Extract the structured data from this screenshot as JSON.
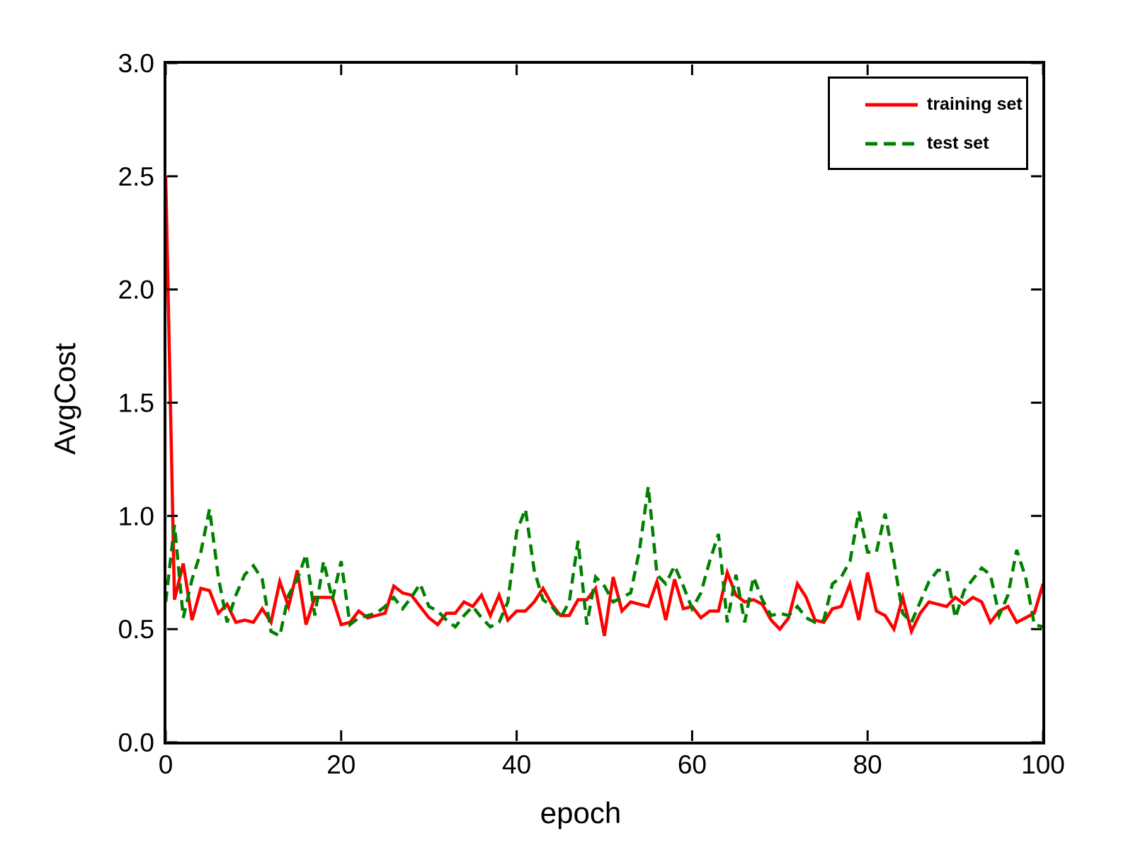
{
  "figure": {
    "background": "#ffffff",
    "axis_color": "#000000"
  },
  "chart_data": {
    "type": "line",
    "title": "",
    "xlabel": "epoch",
    "ylabel": "AvgCost",
    "xlim": [
      0,
      100
    ],
    "ylim": [
      0.0,
      3.0
    ],
    "xticks": [
      0,
      20,
      40,
      60,
      80,
      100
    ],
    "yticks": [
      0.0,
      0.5,
      1.0,
      1.5,
      2.0,
      2.5,
      3.0
    ],
    "ytick_labels": [
      "0.0",
      "0.5",
      "1.0",
      "1.5",
      "2.0",
      "2.5",
      "3.0"
    ],
    "grid": false,
    "legend_position": "upper right",
    "x": [
      0,
      1,
      2,
      3,
      4,
      5,
      6,
      7,
      8,
      9,
      10,
      11,
      12,
      13,
      14,
      15,
      16,
      17,
      18,
      19,
      20,
      21,
      22,
      23,
      24,
      25,
      26,
      27,
      28,
      29,
      30,
      31,
      32,
      33,
      34,
      35,
      36,
      37,
      38,
      39,
      40,
      41,
      42,
      43,
      44,
      45,
      46,
      47,
      48,
      49,
      50,
      51,
      52,
      53,
      54,
      55,
      56,
      57,
      58,
      59,
      60,
      61,
      62,
      63,
      64,
      65,
      66,
      67,
      68,
      69,
      70,
      71,
      72,
      73,
      74,
      75,
      76,
      77,
      78,
      79,
      80,
      81,
      82,
      83,
      84,
      85,
      86,
      87,
      88,
      89,
      90,
      91,
      92,
      93,
      94,
      95,
      96,
      97,
      98,
      99,
      100
    ],
    "series": [
      {
        "name": "training set",
        "color": "#ff0000",
        "style": "solid",
        "values": [
          2.5,
          0.63,
          0.79,
          0.54,
          0.68,
          0.67,
          0.57,
          0.61,
          0.53,
          0.54,
          0.53,
          0.59,
          0.53,
          0.71,
          0.6,
          0.76,
          0.52,
          0.64,
          0.64,
          0.64,
          0.52,
          0.53,
          0.58,
          0.55,
          0.56,
          0.57,
          0.69,
          0.66,
          0.65,
          0.6,
          0.55,
          0.52,
          0.57,
          0.57,
          0.62,
          0.6,
          0.65,
          0.56,
          0.65,
          0.54,
          0.58,
          0.58,
          0.62,
          0.68,
          0.61,
          0.56,
          0.56,
          0.63,
          0.63,
          0.68,
          0.47,
          0.73,
          0.58,
          0.62,
          0.61,
          0.6,
          0.71,
          0.54,
          0.72,
          0.59,
          0.6,
          0.55,
          0.58,
          0.58,
          0.75,
          0.65,
          0.62,
          0.63,
          0.61,
          0.54,
          0.5,
          0.55,
          0.7,
          0.64,
          0.54,
          0.53,
          0.59,
          0.6,
          0.7,
          0.54,
          0.75,
          0.58,
          0.56,
          0.5,
          0.64,
          0.49,
          0.57,
          0.62,
          0.61,
          0.6,
          0.64,
          0.61,
          0.64,
          0.62,
          0.53,
          0.58,
          0.6,
          0.53,
          0.55,
          0.57,
          0.7
        ]
      },
      {
        "name": "test set",
        "color": "#008000",
        "style": "dashed",
        "values": [
          0.62,
          0.96,
          0.55,
          0.72,
          0.84,
          1.03,
          0.73,
          0.53,
          0.65,
          0.74,
          0.78,
          0.72,
          0.49,
          0.47,
          0.65,
          0.72,
          0.83,
          0.56,
          0.8,
          0.63,
          0.8,
          0.52,
          0.55,
          0.56,
          0.57,
          0.6,
          0.64,
          0.59,
          0.64,
          0.7,
          0.6,
          0.58,
          0.54,
          0.51,
          0.56,
          0.6,
          0.55,
          0.51,
          0.53,
          0.62,
          0.93,
          1.03,
          0.76,
          0.63,
          0.6,
          0.55,
          0.62,
          0.89,
          0.52,
          0.73,
          0.69,
          0.62,
          0.64,
          0.66,
          0.85,
          1.13,
          0.74,
          0.7,
          0.78,
          0.69,
          0.59,
          0.66,
          0.8,
          0.92,
          0.53,
          0.74,
          0.53,
          0.73,
          0.63,
          0.56,
          0.57,
          0.56,
          0.6,
          0.55,
          0.53,
          0.54,
          0.7,
          0.73,
          0.8,
          1.02,
          0.84,
          0.84,
          1.01,
          0.8,
          0.57,
          0.53,
          0.62,
          0.71,
          0.76,
          0.76,
          0.55,
          0.67,
          0.72,
          0.77,
          0.74,
          0.56,
          0.65,
          0.85,
          0.73,
          0.52,
          0.51
        ]
      }
    ]
  }
}
